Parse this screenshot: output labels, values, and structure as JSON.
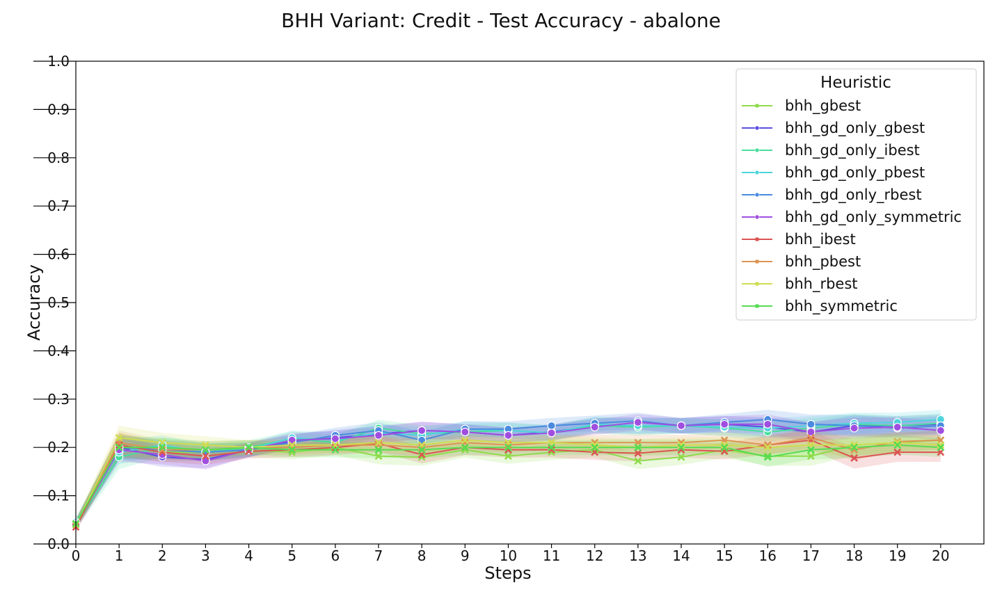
{
  "chart_data": {
    "type": "line",
    "title": "BHH Variant: Credit - Test Accuracy - abalone",
    "xlabel": "Steps",
    "ylabel": "Accuracy",
    "xlim": [
      0,
      21
    ],
    "ylim": [
      0.0,
      1.0
    ],
    "xticks": [
      "0",
      "1",
      "2",
      "3",
      "4",
      "5",
      "6",
      "7",
      "8",
      "9",
      "10",
      "11",
      "12",
      "13",
      "14",
      "15",
      "16",
      "17",
      "18",
      "19",
      "20"
    ],
    "yticks": [
      "0.0",
      "0.1",
      "0.2",
      "0.3",
      "0.4",
      "0.5",
      "0.6",
      "0.7",
      "0.8",
      "0.9",
      "1.0"
    ],
    "grid": false,
    "legend": {
      "title": "Heuristic",
      "placement": "top-right"
    },
    "x": [
      0,
      1,
      2,
      3,
      4,
      5,
      6,
      7,
      8,
      9,
      10,
      11,
      12,
      13,
      14,
      15,
      16,
      17,
      18,
      19,
      20
    ],
    "series": [
      {
        "name": "bhh_gbest",
        "color": "#8fdb4c",
        "marker": "x",
        "values": [
          0.042,
          0.205,
          0.19,
          0.19,
          0.195,
          0.19,
          0.2,
          0.182,
          0.18,
          0.195,
          0.182,
          0.19,
          0.195,
          0.172,
          0.18,
          0.195,
          0.182,
          0.182,
          0.205,
          0.21,
          0.215
        ]
      },
      {
        "name": "bhh_gd_only_gbest",
        "color": "#5a4fe0",
        "marker": "circle",
        "values": [
          0.04,
          0.2,
          0.18,
          0.175,
          0.195,
          0.212,
          0.22,
          0.228,
          0.235,
          0.232,
          0.225,
          0.232,
          0.245,
          0.245,
          0.245,
          0.248,
          0.242,
          0.232,
          0.245,
          0.245,
          0.248
        ]
      },
      {
        "name": "bhh_gd_only_ibest",
        "color": "#47de9c",
        "marker": "circle",
        "values": [
          0.04,
          0.18,
          0.2,
          0.19,
          0.2,
          0.218,
          0.21,
          0.24,
          0.228,
          0.232,
          0.235,
          0.23,
          0.245,
          0.242,
          0.245,
          0.24,
          0.232,
          0.24,
          0.248,
          0.245,
          0.25
        ]
      },
      {
        "name": "bhh_gd_only_pbest",
        "color": "#4ed4dc",
        "marker": "circle",
        "values": [
          0.045,
          0.19,
          0.205,
          0.19,
          0.195,
          0.22,
          0.215,
          0.23,
          0.225,
          0.238,
          0.235,
          0.23,
          0.248,
          0.245,
          0.245,
          0.242,
          0.24,
          0.245,
          0.25,
          0.252,
          0.258
        ]
      },
      {
        "name": "bhh_gd_only_rbest",
        "color": "#4a8bdf",
        "marker": "circle",
        "values": [
          0.042,
          0.2,
          0.195,
          0.19,
          0.195,
          0.21,
          0.225,
          0.235,
          0.215,
          0.238,
          0.238,
          0.245,
          0.25,
          0.255,
          0.245,
          0.252,
          0.258,
          0.248,
          0.245,
          0.24,
          0.245
        ]
      },
      {
        "name": "bhh_gd_only_symmetric",
        "color": "#a04ee0",
        "marker": "circle",
        "values": [
          0.04,
          0.195,
          0.185,
          0.172,
          0.195,
          0.215,
          0.218,
          0.225,
          0.235,
          0.232,
          0.225,
          0.23,
          0.242,
          0.252,
          0.245,
          0.248,
          0.248,
          0.232,
          0.24,
          0.242,
          0.235
        ]
      },
      {
        "name": "bhh_ibest",
        "color": "#dc5452",
        "marker": "x",
        "values": [
          0.035,
          0.205,
          0.19,
          0.182,
          0.192,
          0.195,
          0.2,
          0.208,
          0.185,
          0.2,
          0.195,
          0.195,
          0.19,
          0.188,
          0.195,
          0.192,
          0.205,
          0.215,
          0.178,
          0.19,
          0.19
        ]
      },
      {
        "name": "bhh_pbest",
        "color": "#dc9452",
        "marker": "x",
        "values": [
          0.04,
          0.21,
          0.195,
          0.195,
          0.2,
          0.2,
          0.205,
          0.205,
          0.2,
          0.21,
          0.205,
          0.21,
          0.21,
          0.21,
          0.21,
          0.215,
          0.205,
          0.22,
          0.195,
          0.212,
          0.215
        ]
      },
      {
        "name": "bhh_rbest",
        "color": "#d0dc52",
        "marker": "x",
        "values": [
          0.04,
          0.22,
          0.21,
          0.205,
          0.2,
          0.205,
          0.205,
          0.21,
          0.205,
          0.215,
          0.21,
          0.21,
          0.205,
          0.2,
          0.205,
          0.205,
          0.2,
          0.205,
          0.205,
          0.21,
          0.205
        ]
      },
      {
        "name": "bhh_symmetric",
        "color": "#56dc52",
        "marker": "x",
        "values": [
          0.042,
          0.2,
          0.2,
          0.195,
          0.2,
          0.195,
          0.195,
          0.195,
          0.195,
          0.2,
          0.2,
          0.2,
          0.2,
          0.2,
          0.2,
          0.2,
          0.18,
          0.195,
          0.2,
          0.205,
          0.2
        ]
      }
    ]
  }
}
